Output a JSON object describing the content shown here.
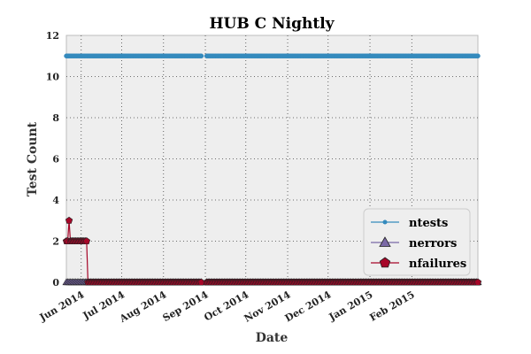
{
  "chart_data": {
    "type": "line",
    "title": "HUB C Nightly",
    "xlabel": "Date",
    "ylabel": "Test Count",
    "ylim": [
      0,
      12
    ],
    "y_ticks": [
      0,
      2,
      4,
      6,
      8,
      10,
      12
    ],
    "xlim": [
      "2014-05-21",
      "2015-03-22"
    ],
    "x_ticks": [
      {
        "date": "2014-06-01",
        "label": "Jun 2014"
      },
      {
        "date": "2014-07-01",
        "label": "Jul 2014"
      },
      {
        "date": "2014-08-01",
        "label": "Aug 2014"
      },
      {
        "date": "2014-09-01",
        "label": "Sep 2014"
      },
      {
        "date": "2014-10-01",
        "label": "Oct 2014"
      },
      {
        "date": "2014-11-01",
        "label": "Nov 2014"
      },
      {
        "date": "2014-12-01",
        "label": "Dec 2014"
      },
      {
        "date": "2015-01-01",
        "label": "Jan 2015"
      },
      {
        "date": "2015-02-01",
        "label": "Feb 2015"
      }
    ],
    "grid": true,
    "legend_position": "lower-right",
    "data_gaps": [
      [
        "2014-08-29",
        "2014-09-02"
      ],
      [
        "2014-09-09",
        "2014-09-10"
      ]
    ],
    "series": [
      {
        "name": "ntests",
        "color": "#348abd",
        "marker": "circle",
        "points": [
          [
            "2014-05-21",
            11
          ],
          [
            "2015-03-22",
            11
          ]
        ]
      },
      {
        "name": "nerrors",
        "color": "#7a68a6",
        "marker": "triangle",
        "points": [
          [
            "2014-05-21",
            0
          ],
          [
            "2015-03-22",
            0
          ]
        ]
      },
      {
        "name": "nfailures",
        "color": "#a60628",
        "marker": "pentagon",
        "points": [
          [
            "2014-05-21",
            2
          ],
          [
            "2014-05-22",
            2
          ],
          [
            "2014-05-23",
            3
          ],
          [
            "2014-05-24",
            2
          ],
          [
            "2014-05-25",
            2
          ],
          [
            "2014-05-26",
            2
          ],
          [
            "2014-05-27",
            2
          ],
          [
            "2014-05-28",
            2
          ],
          [
            "2014-05-29",
            2
          ],
          [
            "2014-05-30",
            2
          ],
          [
            "2014-05-31",
            2
          ],
          [
            "2014-06-01",
            2
          ],
          [
            "2014-06-02",
            2
          ],
          [
            "2014-06-03",
            2
          ],
          [
            "2014-06-04",
            2
          ],
          [
            "2014-06-05",
            2
          ],
          [
            "2014-06-06",
            0
          ],
          [
            "2015-03-22",
            0
          ]
        ]
      }
    ]
  }
}
